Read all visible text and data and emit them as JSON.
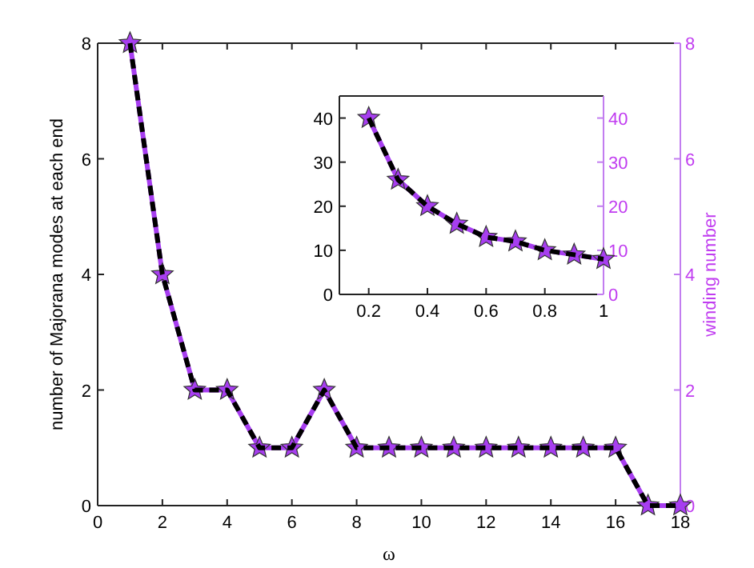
{
  "chart_data": [
    {
      "type": "line",
      "xlabel": "ω",
      "ylabel": "number of Majorana modes at each end",
      "y2label": "winding number",
      "x": [
        1,
        2,
        3,
        4,
        5,
        6,
        7,
        8,
        9,
        10,
        11,
        12,
        13,
        14,
        15,
        16,
        17,
        18
      ],
      "xlim": [
        0,
        18
      ],
      "xticks": [
        0,
        2,
        4,
        6,
        8,
        10,
        12,
        14,
        16,
        18
      ],
      "ylim": [
        0,
        8
      ],
      "yticks": [
        0,
        2,
        4,
        6,
        8
      ],
      "y2lim": [
        0,
        8
      ],
      "y2ticks": [
        0,
        2,
        4,
        6,
        8
      ],
      "series": [
        {
          "color": "#a73ef0",
          "marker": "star",
          "line_style": "solid",
          "values": [
            8,
            4,
            2,
            2,
            1,
            1,
            2,
            1,
            1,
            1,
            1,
            1,
            1,
            1,
            1,
            1,
            0,
            0
          ]
        },
        {
          "color": "#000000",
          "marker": "none",
          "line_style": "dashed",
          "values": [
            8,
            4,
            2,
            2,
            1,
            1,
            2,
            1,
            1,
            1,
            1,
            1,
            1,
            1,
            1,
            1,
            0,
            0
          ]
        }
      ]
    },
    {
      "type": "line",
      "x": [
        0.2,
        0.3,
        0.4,
        0.5,
        0.6,
        0.7,
        0.8,
        0.9,
        1
      ],
      "xlim": [
        0.1,
        1
      ],
      "xticks": [
        0.2,
        0.4,
        0.6,
        0.8,
        1
      ],
      "ylim": [
        0,
        45
      ],
      "yticks": [
        0,
        10,
        20,
        30,
        40
      ],
      "y2lim": [
        0,
        45
      ],
      "y2ticks": [
        0,
        10,
        20,
        30,
        40
      ],
      "series": [
        {
          "color": "#a73ef0",
          "marker": "star",
          "line_style": "solid",
          "values": [
            40,
            26,
            20,
            16,
            13,
            12,
            10,
            9,
            8
          ]
        },
        {
          "color": "#000000",
          "marker": "none",
          "line_style": "dashed",
          "values": [
            40,
            26,
            20,
            16,
            13,
            12,
            10,
            9,
            8
          ]
        }
      ]
    }
  ]
}
